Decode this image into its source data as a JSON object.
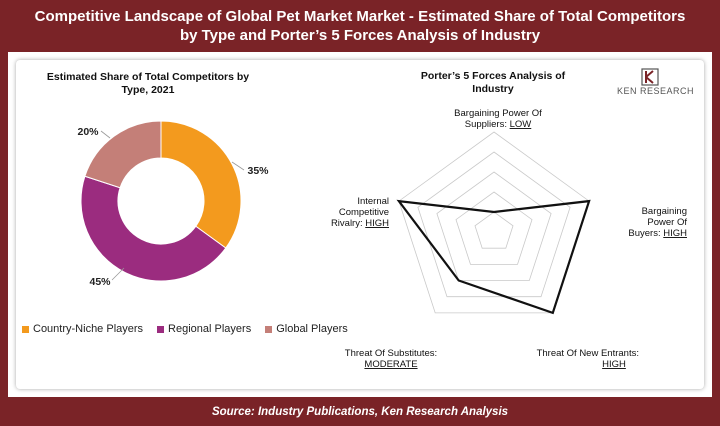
{
  "header": {
    "title_line1": "Competitive Landscape of Global Pet Market Market - Estimated Share of Total Competitors",
    "title_line2": "by Type and Porter’s 5 Forces Analysis of Industry"
  },
  "footer": {
    "source": "Source: Industry Publications, Ken Research Analysis"
  },
  "logo": {
    "text": "KEN RESEARCH",
    "icon": "ken-research-logo-icon"
  },
  "colors": {
    "brand": "#7a2327",
    "country_niche": "#f39a1e",
    "regional": "#9b2c7f",
    "global": "#c47f78",
    "radar_line": "#111111",
    "grid": "#c9c9c9"
  },
  "chart_data": [
    {
      "type": "pie",
      "donut": true,
      "title": "Estimated Share of Total Competitors by Type, 2021",
      "title_line1": "Estimated Share of Total Competitors by",
      "title_line2": "Type, 2021",
      "categories": [
        "Country-Niche Players",
        "Regional Players",
        "Global Players"
      ],
      "values": [
        35,
        45,
        20
      ],
      "labels": [
        "35%",
        "45%",
        "20%"
      ],
      "legend": "bottom"
    },
    {
      "type": "radar",
      "title": "Porter’s 5 Forces Analysis of Industry",
      "title_line1": "Porter’s 5 Forces Analysis of",
      "title_line2": "Industry",
      "axes": [
        {
          "name": "Bargaining Power Of Suppliers",
          "lines": [
            "Bargaining Power Of",
            "Suppliers: "
          ],
          "level_text": "LOW",
          "value": 1
        },
        {
          "name": "Bargaining Power Of Buyers",
          "lines": [
            "Bargaining",
            "Power Of",
            "Buyers: "
          ],
          "level_text": "HIGH",
          "value": 5
        },
        {
          "name": "Threat Of New Entrants",
          "lines": [
            "Threat Of New Entrants:"
          ],
          "level_text": "HIGH",
          "value": 5
        },
        {
          "name": "Threat Of Substitutes",
          "lines": [
            "Threat Of Substitutes:"
          ],
          "level_text": "MODERATE",
          "value": 3
        },
        {
          "name": "Internal Competitive Rivalry",
          "lines": [
            "Internal",
            "Competitive",
            "Rivalry: "
          ],
          "level_text": "HIGH",
          "value": 5
        }
      ],
      "scale_max": 5,
      "grid_levels": 5
    }
  ]
}
